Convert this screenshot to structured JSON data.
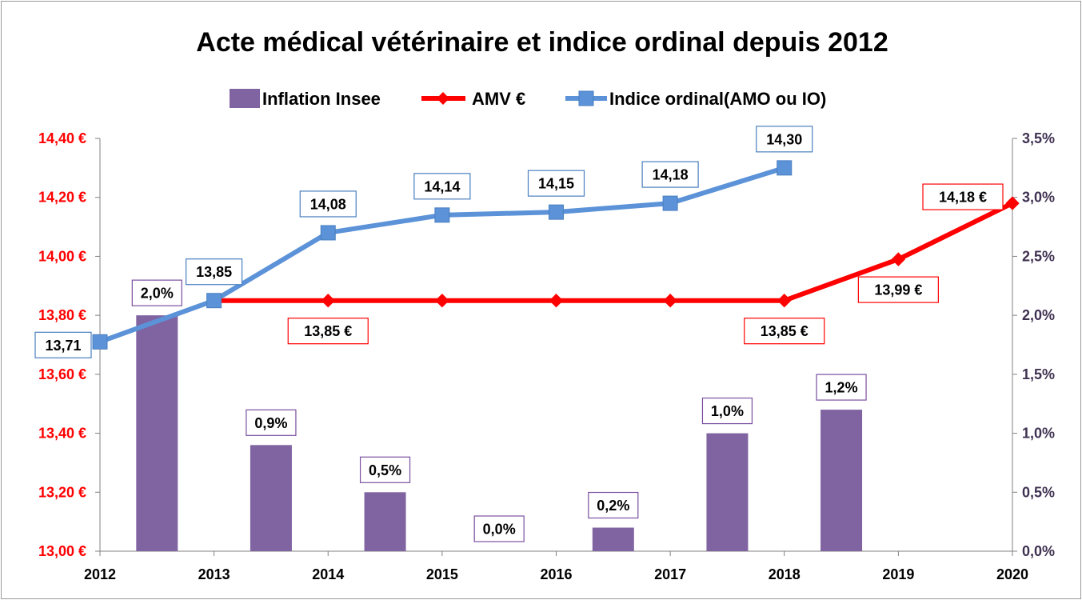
{
  "chart_data": {
    "type": "bar+line",
    "title": "Acte médical vétérinaire et indice ordinal depuis 2012",
    "categories": [
      "2012",
      "2013",
      "2014",
      "2015",
      "2016",
      "2017",
      "2018",
      "2019",
      "2020"
    ],
    "legend_position": "top",
    "grid": false,
    "left_axis": {
      "ylim": [
        13.0,
        14.4
      ],
      "ticks": [
        13.0,
        13.2,
        13.4,
        13.6,
        13.8,
        14.0,
        14.2,
        14.4
      ],
      "tick_labels": [
        "13,00  €",
        "13,20  €",
        "13,40  €",
        "13,60  €",
        "13,80  €",
        "14,00  €",
        "14,20  €",
        "14,40  €"
      ],
      "color": "#ff0000"
    },
    "right_axis": {
      "ylim": [
        0,
        3.5
      ],
      "ticks": [
        0,
        0.5,
        1.0,
        1.5,
        2.0,
        2.5,
        3.0,
        3.5
      ],
      "tick_labels": [
        "0,0%",
        "0,5%",
        "1,0%",
        "1,5%",
        "2,0%",
        "2,5%",
        "3,0%",
        "3,5%"
      ],
      "color": "#3f3151"
    },
    "series": [
      {
        "name": "Inflation Insee",
        "kind": "bar",
        "axis": "right",
        "color": "#8064a2",
        "label_border": "#7a4fa0",
        "x": [
          "2012",
          "2013",
          "2014",
          "2015",
          "2016",
          "2017",
          "2018"
        ],
        "values": [
          2.0,
          0.9,
          0.5,
          0.0,
          0.2,
          1.0,
          1.2
        ],
        "labels": [
          "2,0%",
          "0,9%",
          "0,5%",
          "0,0%",
          "0,2%",
          "1,0%",
          "1,2%"
        ]
      },
      {
        "name": "AMV €",
        "kind": "line",
        "axis": "left",
        "color": "#ff0000",
        "marker": "diamond",
        "x": [
          "2013",
          "2014",
          "2015",
          "2016",
          "2017",
          "2018",
          "2019",
          "2020"
        ],
        "values": [
          13.85,
          13.85,
          13.85,
          13.85,
          13.85,
          13.85,
          13.99,
          14.18
        ],
        "labelled": [
          {
            "x": "2014",
            "text": "13,85  €"
          },
          {
            "x": "2018",
            "text": "13,85  €"
          },
          {
            "x": "2019",
            "text": "13,99  €"
          },
          {
            "x": "2020",
            "text": "14,18  €"
          }
        ]
      },
      {
        "name": "Indice ordinal(AMO ou IO)",
        "kind": "line",
        "axis": "left",
        "color": "#5b92d8",
        "marker": "square",
        "x": [
          "2012",
          "2013",
          "2014",
          "2015",
          "2016",
          "2017",
          "2018"
        ],
        "values": [
          13.71,
          13.85,
          14.08,
          14.14,
          14.15,
          14.18,
          14.3
        ],
        "labels": [
          "13,71",
          "13,85",
          "14,08",
          "14,14",
          "14,15",
          "14,18",
          "14,30"
        ]
      }
    ]
  }
}
